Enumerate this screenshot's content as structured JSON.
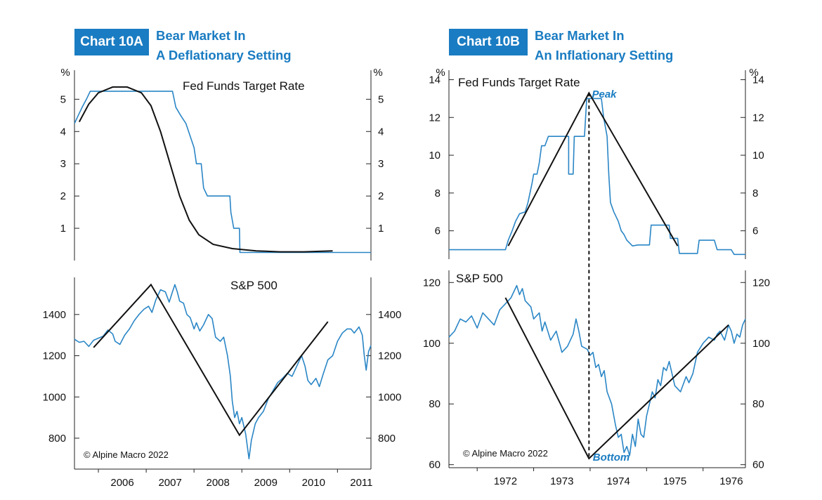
{
  "chart_data": [
    {
      "id": "10A",
      "type": "line",
      "tag": "Chart 10A",
      "title_line1": "Bear Market In",
      "title_line2": "A Deflationary Setting",
      "x_ticks": [
        "2006",
        "2007",
        "2008",
        "2009",
        "2010",
        "2011"
      ],
      "credit": "© Alpine Macro 2022",
      "top": {
        "label": "Fed Funds Target Rate",
        "unit": "%",
        "ylim": [
          0,
          5.9
        ],
        "y_ticks": [
          1,
          2,
          3,
          4,
          5
        ],
        "series": [
          [
            2005.5,
            4.25
          ],
          [
            2005.58,
            4.5
          ],
          [
            2005.66,
            4.75
          ],
          [
            2005.75,
            5.0
          ],
          [
            2005.83,
            5.25
          ],
          [
            2007.12,
            5.25
          ],
          [
            2007.12,
            5.25
          ],
          [
            2007.55,
            5.25
          ],
          [
            2007.62,
            4.75
          ],
          [
            2007.72,
            4.5
          ],
          [
            2007.83,
            4.25
          ],
          [
            2008.0,
            3.5
          ],
          [
            2008.05,
            3.0
          ],
          [
            2008.15,
            3.0
          ],
          [
            2008.2,
            2.25
          ],
          [
            2008.28,
            2.0
          ],
          [
            2008.75,
            2.0
          ],
          [
            2008.77,
            1.5
          ],
          [
            2008.83,
            1.0
          ],
          [
            2008.95,
            1.0
          ],
          [
            2008.96,
            0.25
          ],
          [
            2011.7,
            0.25
          ]
        ],
        "trend": [
          [
            2005.6,
            4.3
          ],
          [
            2005.8,
            4.85
          ],
          [
            2006.0,
            5.2
          ],
          [
            2006.3,
            5.38
          ],
          [
            2006.6,
            5.38
          ],
          [
            2006.9,
            5.2
          ],
          [
            2007.1,
            4.8
          ],
          [
            2007.3,
            4.0
          ],
          [
            2007.5,
            3.0
          ],
          [
            2007.7,
            2.0
          ],
          [
            2007.9,
            1.25
          ],
          [
            2008.1,
            0.8
          ],
          [
            2008.4,
            0.5
          ],
          [
            2008.8,
            0.37
          ],
          [
            2009.3,
            0.3
          ],
          [
            2009.8,
            0.27
          ],
          [
            2010.3,
            0.27
          ],
          [
            2010.9,
            0.3
          ]
        ]
      },
      "bottom": {
        "label": "S&P 500",
        "ylim": [
          650,
          1580
        ],
        "y_ticks": [
          800,
          1000,
          1200,
          1400
        ],
        "series": [
          [
            2005.5,
            1280
          ],
          [
            2005.6,
            1265
          ],
          [
            2005.7,
            1270
          ],
          [
            2005.8,
            1245
          ],
          [
            2005.9,
            1275
          ],
          [
            2006.0,
            1285
          ],
          [
            2006.1,
            1295
          ],
          [
            2006.2,
            1325
          ],
          [
            2006.3,
            1305
          ],
          [
            2006.35,
            1270
          ],
          [
            2006.45,
            1255
          ],
          [
            2006.55,
            1300
          ],
          [
            2006.65,
            1330
          ],
          [
            2006.75,
            1370
          ],
          [
            2006.85,
            1400
          ],
          [
            2006.95,
            1425
          ],
          [
            2007.05,
            1440
          ],
          [
            2007.12,
            1410
          ],
          [
            2007.2,
            1470
          ],
          [
            2007.3,
            1520
          ],
          [
            2007.4,
            1510
          ],
          [
            2007.48,
            1460
          ],
          [
            2007.55,
            1510
          ],
          [
            2007.6,
            1545
          ],
          [
            2007.65,
            1510
          ],
          [
            2007.7,
            1465
          ],
          [
            2007.78,
            1455
          ],
          [
            2007.85,
            1400
          ],
          [
            2007.92,
            1385
          ],
          [
            2008.0,
            1330
          ],
          [
            2008.05,
            1360
          ],
          [
            2008.12,
            1320
          ],
          [
            2008.2,
            1350
          ],
          [
            2008.3,
            1400
          ],
          [
            2008.38,
            1380
          ],
          [
            2008.45,
            1290
          ],
          [
            2008.55,
            1270
          ],
          [
            2008.62,
            1290
          ],
          [
            2008.7,
            1200
          ],
          [
            2008.76,
            1100
          ],
          [
            2008.8,
            980
          ],
          [
            2008.85,
            900
          ],
          [
            2008.9,
            930
          ],
          [
            2008.95,
            870
          ],
          [
            2009.0,
            900
          ],
          [
            2009.08,
            820
          ],
          [
            2009.15,
            700
          ],
          [
            2009.2,
            790
          ],
          [
            2009.28,
            870
          ],
          [
            2009.35,
            900
          ],
          [
            2009.45,
            930
          ],
          [
            2009.55,
            990
          ],
          [
            2009.65,
            1030
          ],
          [
            2009.75,
            1070
          ],
          [
            2009.85,
            1090
          ],
          [
            2009.95,
            1115
          ],
          [
            2010.05,
            1100
          ],
          [
            2010.15,
            1150
          ],
          [
            2010.25,
            1200
          ],
          [
            2010.32,
            1150
          ],
          [
            2010.38,
            1080
          ],
          [
            2010.45,
            1060
          ],
          [
            2010.55,
            1090
          ],
          [
            2010.62,
            1050
          ],
          [
            2010.7,
            1110
          ],
          [
            2010.8,
            1180
          ],
          [
            2010.9,
            1200
          ],
          [
            2011.0,
            1270
          ],
          [
            2011.1,
            1310
          ],
          [
            2011.2,
            1330
          ],
          [
            2011.28,
            1330
          ],
          [
            2011.35,
            1310
          ],
          [
            2011.45,
            1340
          ],
          [
            2011.52,
            1300
          ],
          [
            2011.56,
            1200
          ],
          [
            2011.6,
            1130
          ],
          [
            2011.65,
            1220
          ],
          [
            2011.7,
            1250
          ]
        ],
        "trend": [
          [
            2005.9,
            1240
          ],
          [
            2007.1,
            1545
          ],
          [
            2008.95,
            815
          ],
          [
            2010.8,
            1365
          ]
        ]
      }
    },
    {
      "id": "10B",
      "type": "line",
      "tag": "Chart 10B",
      "title_line1": "Bear Market In",
      "title_line2": "An Inflationary Setting",
      "x_ticks": [
        "1972",
        "1973",
        "1974",
        "1975",
        "1976"
      ],
      "credit": "© Alpine Macro 2022",
      "annotations": {
        "top": "Peak",
        "bottom": "Bottom"
      },
      "top": {
        "label": "Fed Funds Target Rate",
        "unit": "%",
        "ylim": [
          4.5,
          14.5
        ],
        "y_ticks": [
          6,
          8,
          10,
          12,
          14
        ],
        "series": [
          [
            1971.5,
            5.0
          ],
          [
            1972.5,
            5.0
          ],
          [
            1972.55,
            5.5
          ],
          [
            1972.62,
            6.0
          ],
          [
            1972.68,
            6.5
          ],
          [
            1972.75,
            6.9
          ],
          [
            1972.85,
            7.0
          ],
          [
            1972.9,
            7.5
          ],
          [
            1972.97,
            8.5
          ],
          [
            1973.0,
            9.0
          ],
          [
            1973.06,
            9.0
          ],
          [
            1973.1,
            9.6
          ],
          [
            1973.14,
            10.5
          ],
          [
            1973.2,
            10.5
          ],
          [
            1973.26,
            11.0
          ],
          [
            1973.62,
            11.0
          ],
          [
            1973.62,
            9.0
          ],
          [
            1973.7,
            9.0
          ],
          [
            1973.72,
            11.0
          ],
          [
            1973.9,
            11.0
          ],
          [
            1973.92,
            12.0
          ],
          [
            1973.94,
            13.0
          ],
          [
            1974.2,
            13.0
          ],
          [
            1974.24,
            12.0
          ],
          [
            1974.3,
            11.0
          ],
          [
            1974.33,
            9.0
          ],
          [
            1974.36,
            7.5
          ],
          [
            1974.42,
            7.0
          ],
          [
            1974.5,
            6.5
          ],
          [
            1974.55,
            6.0
          ],
          [
            1974.6,
            5.8
          ],
          [
            1974.65,
            5.5
          ],
          [
            1974.75,
            5.2
          ],
          [
            1974.85,
            5.25
          ],
          [
            1975.05,
            5.25
          ],
          [
            1975.08,
            6.3
          ],
          [
            1975.4,
            6.3
          ],
          [
            1975.42,
            5.6
          ],
          [
            1975.55,
            5.6
          ],
          [
            1975.58,
            4.8
          ],
          [
            1975.9,
            4.8
          ],
          [
            1975.93,
            5.5
          ],
          [
            1976.2,
            5.5
          ],
          [
            1976.25,
            5.0
          ],
          [
            1976.5,
            5.0
          ],
          [
            1976.55,
            4.75
          ],
          [
            1976.75,
            4.75
          ]
        ],
        "trend": [
          [
            1972.55,
            5.2
          ],
          [
            1973.98,
            13.3
          ],
          [
            1975.55,
            5.2
          ]
        ]
      },
      "bottom": {
        "label": "S&P 500",
        "ylim": [
          59,
          124
        ],
        "y_ticks": [
          60,
          80,
          100,
          120
        ],
        "series": [
          [
            1971.5,
            102
          ],
          [
            1971.6,
            104
          ],
          [
            1971.7,
            108
          ],
          [
            1971.8,
            107
          ],
          [
            1971.9,
            109
          ],
          [
            1972.0,
            105
          ],
          [
            1972.1,
            110
          ],
          [
            1972.2,
            108
          ],
          [
            1972.3,
            106
          ],
          [
            1972.4,
            111
          ],
          [
            1972.5,
            113
          ],
          [
            1972.6,
            115
          ],
          [
            1972.7,
            119
          ],
          [
            1972.75,
            116
          ],
          [
            1972.8,
            118
          ],
          [
            1972.85,
            114
          ],
          [
            1972.95,
            112
          ],
          [
            1973.0,
            108
          ],
          [
            1973.1,
            110
          ],
          [
            1973.15,
            104
          ],
          [
            1973.2,
            107
          ],
          [
            1973.3,
            101
          ],
          [
            1973.4,
            104
          ],
          [
            1973.5,
            97
          ],
          [
            1973.6,
            99
          ],
          [
            1973.7,
            103
          ],
          [
            1973.75,
            108
          ],
          [
            1973.8,
            104
          ],
          [
            1973.85,
            99
          ],
          [
            1973.95,
            98
          ],
          [
            1974.0,
            96
          ],
          [
            1974.05,
            97
          ],
          [
            1974.1,
            92
          ],
          [
            1974.15,
            93
          ],
          [
            1974.2,
            89
          ],
          [
            1974.25,
            91
          ],
          [
            1974.3,
            84
          ],
          [
            1974.38,
            80
          ],
          [
            1974.45,
            73
          ],
          [
            1974.5,
            69
          ],
          [
            1974.55,
            70
          ],
          [
            1974.6,
            64
          ],
          [
            1974.65,
            66
          ],
          [
            1974.7,
            63
          ],
          [
            1974.75,
            70
          ],
          [
            1974.8,
            66
          ],
          [
            1974.85,
            75
          ],
          [
            1974.9,
            70
          ],
          [
            1974.95,
            69
          ],
          [
            1975.0,
            76
          ],
          [
            1975.05,
            80
          ],
          [
            1975.1,
            84
          ],
          [
            1975.15,
            82
          ],
          [
            1975.2,
            88
          ],
          [
            1975.25,
            86
          ],
          [
            1975.3,
            92
          ],
          [
            1975.35,
            91
          ],
          [
            1975.4,
            94
          ],
          [
            1975.45,
            90
          ],
          [
            1975.5,
            86
          ],
          [
            1975.55,
            85
          ],
          [
            1975.6,
            84
          ],
          [
            1975.7,
            89
          ],
          [
            1975.75,
            87
          ],
          [
            1975.82,
            90
          ],
          [
            1975.9,
            97
          ],
          [
            1976.0,
            100
          ],
          [
            1976.1,
            102
          ],
          [
            1976.2,
            101
          ],
          [
            1976.25,
            103
          ],
          [
            1976.3,
            104
          ],
          [
            1976.38,
            101
          ],
          [
            1976.45,
            106
          ],
          [
            1976.5,
            104
          ],
          [
            1976.55,
            100
          ],
          [
            1976.6,
            103
          ],
          [
            1976.65,
            102
          ],
          [
            1976.7,
            106
          ],
          [
            1976.75,
            108
          ]
        ],
        "trend": [
          [
            1972.5,
            115
          ],
          [
            1973.98,
            62
          ],
          [
            1976.45,
            106
          ]
        ]
      }
    }
  ]
}
